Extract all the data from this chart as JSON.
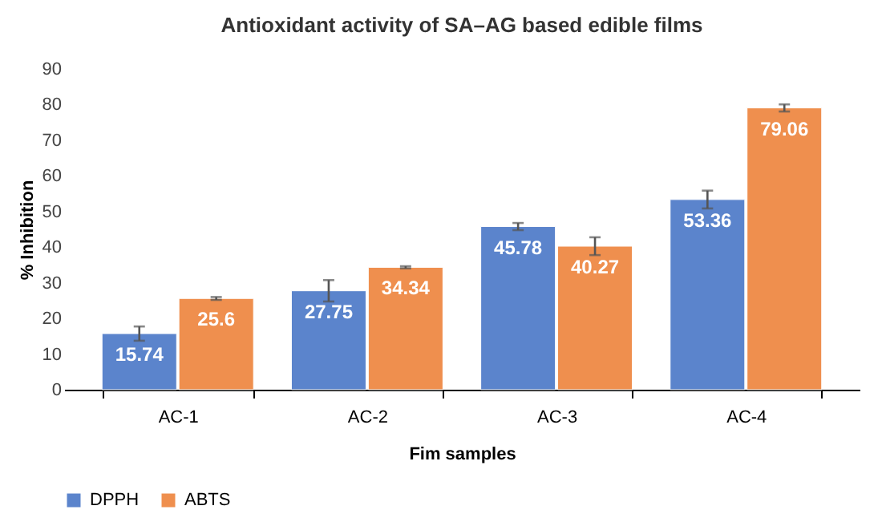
{
  "chart_data": {
    "type": "bar",
    "title": "Antioxidant activity of SA–AG based edible films",
    "xlabel": "Fim samples",
    "ylabel": "% Inhibition",
    "categories": [
      "AC-1",
      "AC-2",
      "AC-3",
      "AC-4"
    ],
    "series": [
      {
        "name": "DPPH",
        "color": "#5b84cc",
        "values": [
          15.74,
          27.75,
          45.78,
          53.36
        ],
        "errors": [
          2,
          3,
          1,
          2.5
        ]
      },
      {
        "name": "ABTS",
        "color": "#ef8f4e",
        "values": [
          25.6,
          34.34,
          40.27,
          79.06
        ],
        "errors": [
          0.4,
          0.3,
          2.5,
          1
        ]
      }
    ],
    "ylim": [
      0,
      90
    ],
    "yticks": [
      0,
      10,
      20,
      30,
      40,
      50,
      60,
      70,
      80,
      90
    ],
    "grid": false,
    "legend": "bottom",
    "data_labels": true
  }
}
